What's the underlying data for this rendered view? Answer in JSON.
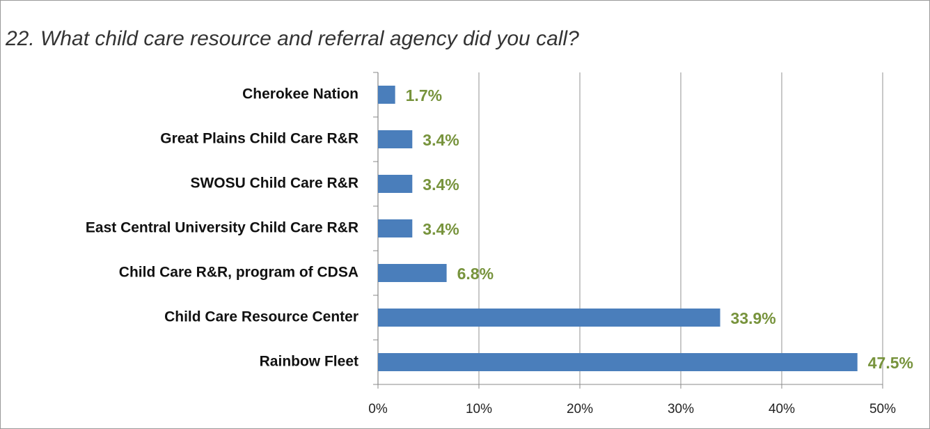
{
  "chart_data": {
    "type": "bar",
    "orientation": "horizontal",
    "title": "22. What child care resource and referral agency did you call?",
    "categories": [
      "Cherokee Nation",
      "Great Plains Child Care R&R",
      "SWOSU Child Care R&R",
      "East Central University Child Care R&R",
      "Child Care R&R, program of CDSA",
      "Child Care Resource Center",
      "Rainbow Fleet"
    ],
    "values": [
      1.7,
      3.4,
      3.4,
      3.4,
      6.8,
      33.9,
      47.5
    ],
    "value_labels": [
      "1.7%",
      "3.4%",
      "3.4%",
      "3.4%",
      "6.8%",
      "33.9%",
      "47.5%"
    ],
    "color": "#4a7ebb",
    "xlim": [
      0,
      50
    ],
    "xticks": [
      {
        "value": 0,
        "label": "0%"
      },
      {
        "value": 10,
        "label": "10%"
      },
      {
        "value": 20,
        "label": "20%"
      },
      {
        "value": 30,
        "label": "30%"
      },
      {
        "value": 40,
        "label": "40%"
      },
      {
        "value": 50,
        "label": "50%"
      }
    ],
    "grid": true
  }
}
